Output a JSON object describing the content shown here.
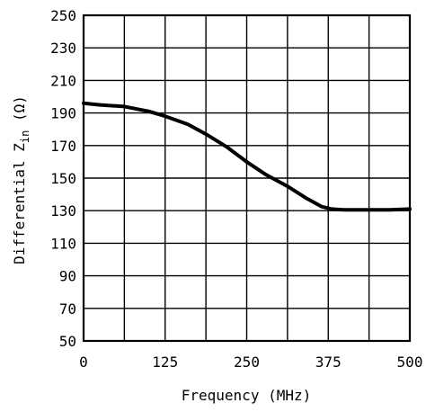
{
  "chart_data": {
    "type": "line",
    "xlabel": "Frequency (MHz)",
    "ylabel": {
      "before_sub": "Differential Z",
      "sub": "in",
      "after_sub": " (Ω)"
    },
    "xlim": [
      0,
      500
    ],
    "ylim": [
      50,
      250
    ],
    "xticks": [
      0,
      125,
      250,
      375,
      500
    ],
    "yticks": [
      50,
      70,
      90,
      110,
      130,
      150,
      170,
      190,
      210,
      230,
      250
    ],
    "xtick_labels": [
      "0",
      "125",
      "250",
      "375",
      "500"
    ],
    "ytick_labels": [
      "50",
      "70",
      "90",
      "110",
      "130",
      "150",
      "170",
      "190",
      "210",
      "230",
      "250"
    ],
    "x_gridlines": [
      0,
      62.5,
      125,
      187.5,
      250,
      312.5,
      375,
      437.5,
      500
    ],
    "y_gridlines": [
      50,
      70,
      90,
      110,
      130,
      150,
      170,
      190,
      210,
      230,
      250
    ],
    "grid": true,
    "series": [
      {
        "x": [
          0,
          25,
          62.5,
          100,
          125,
          160,
          187.5,
          220,
          250,
          280,
          312.5,
          340,
          365,
          380,
          400,
          437.5,
          470,
          500
        ],
        "y": [
          196,
          195,
          194,
          191,
          188,
          183,
          177,
          169,
          160,
          152,
          145,
          138,
          132.5,
          131,
          130.5,
          130.5,
          130.5,
          131
        ],
        "color": "#000000"
      }
    ]
  }
}
